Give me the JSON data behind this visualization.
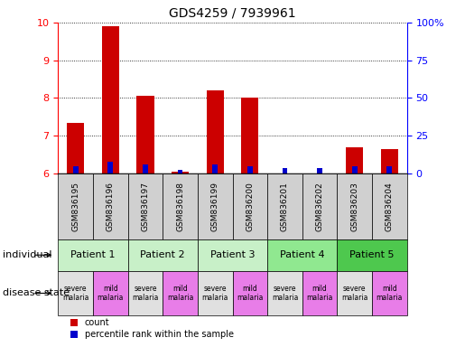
{
  "title": "GDS4259 / 7939961",
  "samples": [
    "GSM836195",
    "GSM836196",
    "GSM836197",
    "GSM836198",
    "GSM836199",
    "GSM836200",
    "GSM836201",
    "GSM836202",
    "GSM836203",
    "GSM836204"
  ],
  "red_values": [
    7.35,
    9.9,
    8.05,
    6.05,
    8.2,
    8.0,
    6.0,
    6.0,
    6.7,
    6.65
  ],
  "blue_values": [
    6.2,
    6.3,
    6.25,
    6.1,
    6.25,
    6.2,
    6.15,
    6.15,
    6.2,
    6.2
  ],
  "ylim_left": [
    6,
    10
  ],
  "ylim_right": [
    0,
    100
  ],
  "yticks_left": [
    6,
    7,
    8,
    9,
    10
  ],
  "yticks_right": [
    0,
    25,
    50,
    75,
    100
  ],
  "ytick_labels_right": [
    "0",
    "25",
    "50",
    "75",
    "100%"
  ],
  "patients": [
    {
      "label": "Patient 1",
      "cols": [
        0,
        1
      ],
      "color": "#c8f0c8"
    },
    {
      "label": "Patient 2",
      "cols": [
        2,
        3
      ],
      "color": "#c8f0c8"
    },
    {
      "label": "Patient 3",
      "cols": [
        4,
        5
      ],
      "color": "#c8f0c8"
    },
    {
      "label": "Patient 4",
      "cols": [
        6,
        7
      ],
      "color": "#90e890"
    },
    {
      "label": "Patient 5",
      "cols": [
        8,
        9
      ],
      "color": "#4ec84e"
    }
  ],
  "disease_states": [
    {
      "label": "severe\nmalaria",
      "col": 0,
      "color": "#e0e0e0"
    },
    {
      "label": "mild\nmalaria",
      "col": 1,
      "color": "#e87de8"
    },
    {
      "label": "severe\nmalaria",
      "col": 2,
      "color": "#e0e0e0"
    },
    {
      "label": "mild\nmalaria",
      "col": 3,
      "color": "#e87de8"
    },
    {
      "label": "severe\nmalaria",
      "col": 4,
      "color": "#e0e0e0"
    },
    {
      "label": "mild\nmalaria",
      "col": 5,
      "color": "#e87de8"
    },
    {
      "label": "severe\nmalaria",
      "col": 6,
      "color": "#e0e0e0"
    },
    {
      "label": "mild\nmalaria",
      "col": 7,
      "color": "#e87de8"
    },
    {
      "label": "severe\nmalaria",
      "col": 8,
      "color": "#e0e0e0"
    },
    {
      "label": "mild\nmalaria",
      "col": 9,
      "color": "#e87de8"
    }
  ],
  "red_color": "#cc0000",
  "blue_color": "#0000cc",
  "sample_bg_color": "#d0d0d0",
  "legend_red": "count",
  "legend_blue": "percentile rank within the sample",
  "individual_label": "individual",
  "disease_state_label": "disease state",
  "bar_width": 0.5,
  "blue_bar_width": 0.15
}
